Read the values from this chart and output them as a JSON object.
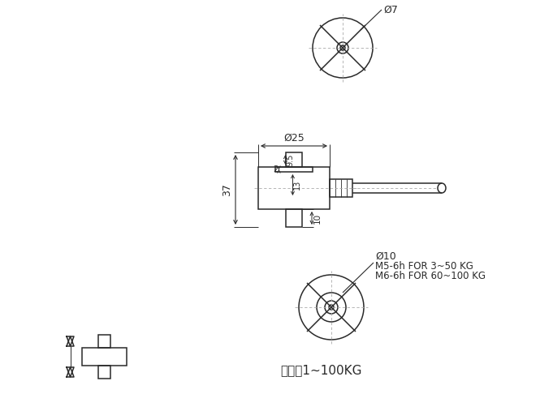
{
  "bg_color": "#ffffff",
  "line_color": "#2a2a2a",
  "dim_color": "#2a2a2a",
  "title_text": "量程：1~100KG",
  "dim_phi25": "Ø25",
  "dim_phi7": "Ø7",
  "dim_phi10": "Ø10",
  "dim_37": "37",
  "dim_9p5": "9.5",
  "dim_13": "13",
  "dim_2": "2",
  "dim_10": "10",
  "annotation1": "M5-6h FOR 3ｐ50 KG",
  "annotation2": "M6-6h FOR 60ｐ100 KG",
  "ann1": "M5-6h FOR 3～50 KG",
  "ann2": "M6-6h FOR 60～100 KG"
}
